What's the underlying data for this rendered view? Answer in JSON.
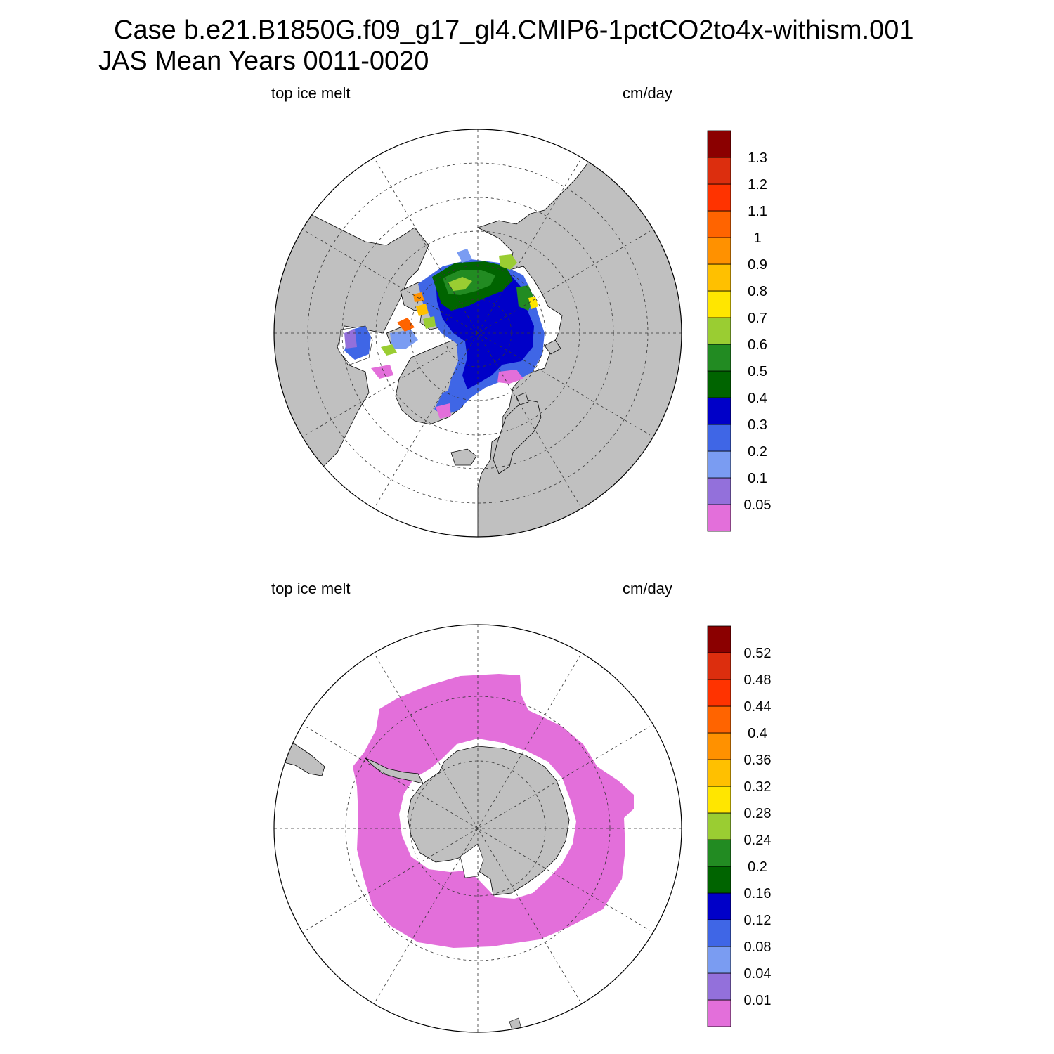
{
  "title": {
    "line1": "Case b.e21.B1850G.f09_g17_gl4.CMIP6-1pctCO2to4x-withism.001",
    "line2": "JAS Mean   Years 0011-0020"
  },
  "colors": {
    "land": "#c0c0c0",
    "ocean": "#ffffff",
    "scale": [
      "#e36fda",
      "#9370db",
      "#7a9cf2",
      "#3f66e6",
      "#0000c8",
      "#006400",
      "#228b22",
      "#9acd32",
      "#ffe600",
      "#ffc000",
      "#ff9100",
      "#ff6400",
      "#ff3300",
      "#dc2e0e",
      "#8b0000"
    ]
  },
  "panels": [
    {
      "id": "arctic",
      "variable": "top ice melt",
      "units": "cm/day",
      "hemisphere": "north",
      "colorbar": {
        "labels": [
          "0.05",
          "0.1",
          "0.2",
          "0.3",
          "0.4",
          "0.5",
          "0.6",
          "0.7",
          "0.8",
          "0.9",
          "1",
          "1.1",
          "1.2",
          "1.3"
        ]
      }
    },
    {
      "id": "antarctic",
      "variable": "top ice melt",
      "units": "cm/day",
      "hemisphere": "south",
      "colorbar": {
        "labels": [
          "0.01",
          "0.04",
          "0.08",
          "0.12",
          "0.16",
          "0.2",
          "0.24",
          "0.28",
          "0.32",
          "0.36",
          "0.4",
          "0.44",
          "0.48",
          "0.52"
        ]
      }
    }
  ]
}
